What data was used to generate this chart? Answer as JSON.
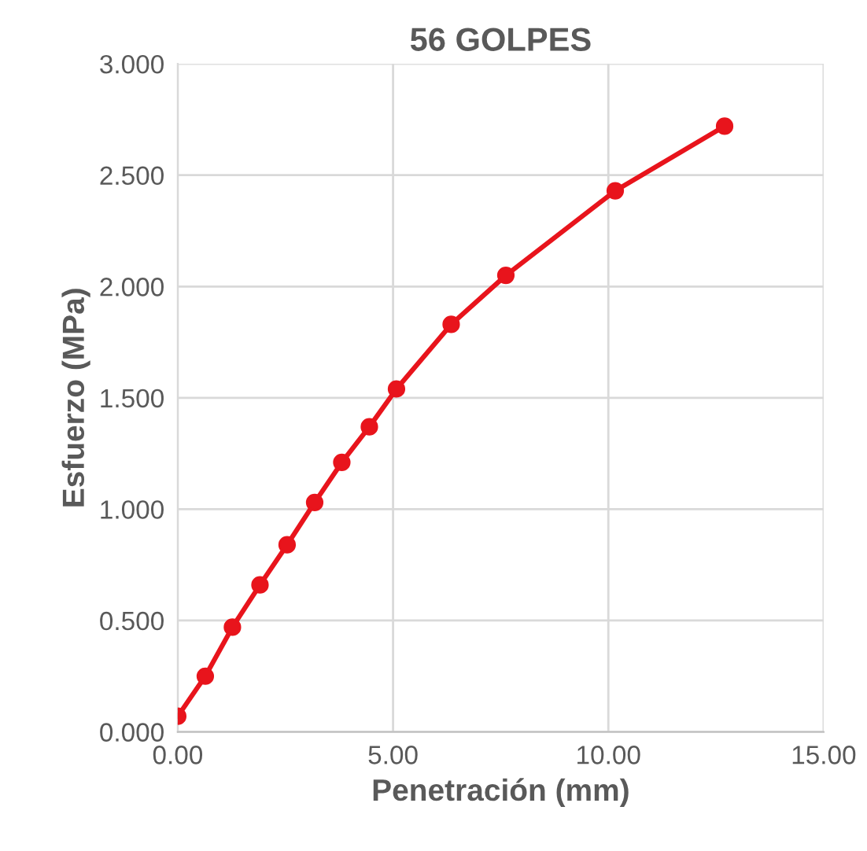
{
  "chart_data": {
    "type": "line",
    "title": "56 GOLPES",
    "xlabel": "Penetración (mm)",
    "ylabel": "Esfuerzo (MPa)",
    "x": [
      0,
      0.64,
      1.27,
      1.91,
      2.54,
      3.18,
      3.81,
      4.45,
      5.08,
      6.35,
      7.62,
      10.16,
      12.7
    ],
    "series": [
      {
        "color": "#e8141c",
        "values": [
          0.07,
          0.25,
          0.47,
          0.66,
          0.84,
          1.03,
          1.21,
          1.37,
          1.54,
          1.83,
          2.05,
          2.43,
          2.72
        ]
      }
    ],
    "xlim": [
      0,
      15
    ],
    "ylim": [
      0,
      3
    ],
    "xticks": [
      {
        "value": 0,
        "label": "0.00"
      },
      {
        "value": 5,
        "label": "5.00"
      },
      {
        "value": 10,
        "label": "10.00"
      },
      {
        "value": 15,
        "label": "15.00"
      }
    ],
    "yticks": [
      {
        "value": 0,
        "label": "0.000"
      },
      {
        "value": 0.5,
        "label": "0.500"
      },
      {
        "value": 1,
        "label": "1.000"
      },
      {
        "value": 1.5,
        "label": "1.500"
      },
      {
        "value": 2,
        "label": "2.000"
      },
      {
        "value": 2.5,
        "label": "2.500"
      },
      {
        "value": 3,
        "label": "3.000"
      }
    ],
    "grid": true,
    "marker": "circle",
    "line_style": "solid",
    "legend": false
  }
}
